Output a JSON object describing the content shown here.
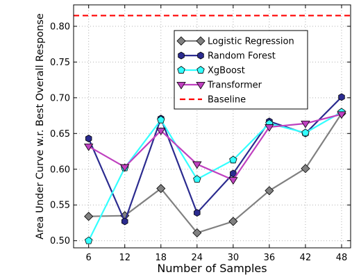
{
  "chart_data": {
    "type": "line",
    "xlabel": "Number of Samples",
    "ylabel": "Area Under Curve w.r. Best Overall Response",
    "x": [
      6,
      12,
      18,
      24,
      30,
      36,
      42,
      48
    ],
    "xlim": [
      3.5,
      49.5
    ],
    "ylim": [
      0.49,
      0.83
    ],
    "xticks": [
      6,
      12,
      18,
      24,
      30,
      36,
      42,
      48
    ],
    "yticks": [
      0.5,
      0.55,
      0.6,
      0.65,
      0.7,
      0.75,
      0.8
    ],
    "grid": true,
    "legend_position": "top-right",
    "series": [
      {
        "name": "Logistic Regression",
        "color": "#808080",
        "marker": "diamond",
        "values": [
          0.534,
          0.535,
          0.573,
          0.511,
          0.527,
          0.57,
          0.601,
          0.678
        ]
      },
      {
        "name": "Random Forest",
        "color": "#2b2b8f",
        "marker": "hexagon",
        "values": [
          0.643,
          0.527,
          0.671,
          0.539,
          0.594,
          0.667,
          0.65,
          0.701
        ]
      },
      {
        "name": "XgBoost",
        "color": "#33ffff",
        "marker": "pentagon",
        "values": [
          0.5,
          0.602,
          0.669,
          0.586,
          0.613,
          0.664,
          0.651,
          0.68
        ]
      },
      {
        "name": "Transformer",
        "color": "#bf40bf",
        "marker": "triangle-down",
        "values": [
          0.632,
          0.603,
          0.654,
          0.607,
          0.585,
          0.659,
          0.664,
          0.677
        ]
      }
    ],
    "baseline": {
      "name": "Baseline",
      "value": 0.815,
      "color": "#ff0000",
      "style": "dashed"
    }
  }
}
